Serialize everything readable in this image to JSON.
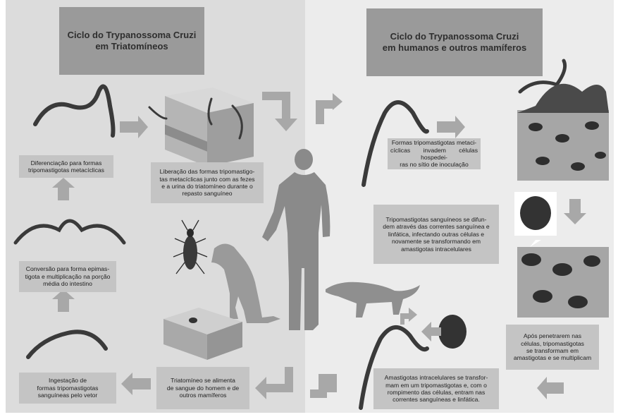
{
  "titles": {
    "left": "Ciclo do Trypanossoma Cruzi\nem Triatomíneos",
    "right": "Ciclo do Trypanossoma Cruzi\nem humanos e outros mamíferos"
  },
  "steps_left": {
    "diferenciacao": "Diferenciação para formas\ntripomastigotas metacíclicas",
    "liberacao": "Liberação das formas tripomastigo-\ntas metacíclicas junto com as fezes\ne a urina do triatomíneo durante o\nrepasto sanguíneo",
    "conversao": "Conversão para forma epimas-\ntigota e multiplicação na porção\nmédia do intestino",
    "ingestao": "Ingestação de\nformas tripomastigotas\nsanguíneas pelo vetor",
    "alimenta": "Triatomíneo se alimenta\nde sangue do homem e de\noutros mamíferos"
  },
  "steps_right": {
    "invadem": "Formas tripomastigotas metaci-\ncíclicas invadem células hospedei-\nras no sítio de inoculação",
    "difundem": "Tripomastigotas sanguíneos se difun-\ndem através das correntes sanguínea e\nlinfática, infectando outras células e\nnovamente se transformando em\namastigotas intracelulares",
    "penetrarem": "Após penetrarem nas\ncélulas, tripomastigotas\nse transformam em\namastigotas e se multiplicam",
    "amastigotas": "Amastigotas intracelulares se transfor-\nmam em um tripomastigotas e, com o\nrompimento das células, entram nas\ncorrentes sanguíneas e linfática."
  },
  "colors": {
    "left_bg": "#dcdcdc",
    "right_bg": "#ececec",
    "title_bg": "#9a9a9a",
    "box_bg": "#c4c4c4",
    "arrow": "#a8a8a8",
    "silhouette": "#8a8a8a",
    "parasite": "#3a3a3a"
  }
}
